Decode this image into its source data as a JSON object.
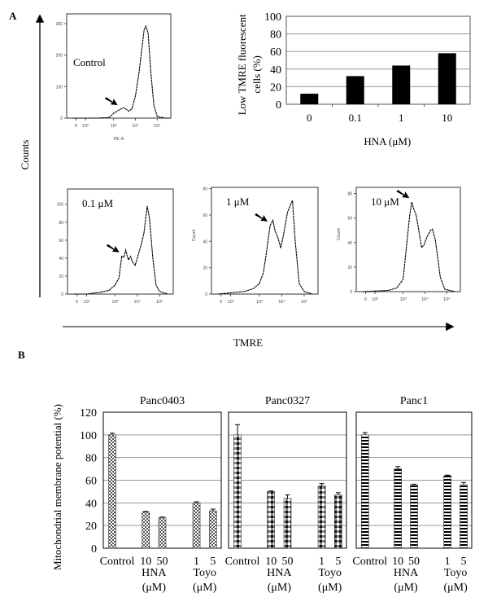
{
  "figure": {
    "panel_a_label": "A",
    "panel_b_label": "B",
    "counts_label": "Counts",
    "tmre_label": "TMRE",
    "mmp_ylabel": "Mitochondrial membrane potential (%)"
  },
  "chart_data": [
    {
      "id": "hist-control",
      "type": "line",
      "xscale": "log",
      "label": "Control",
      "xlabel": "PE-A",
      "ylabel": "",
      "xticks": [
        "0",
        "10²",
        "10³",
        "10⁴",
        "10⁵"
      ],
      "yticks": [
        0,
        100,
        200,
        300
      ],
      "ylim": [
        0,
        331
      ],
      "arrow_at": 2000,
      "points": [
        [
          10,
          0
        ],
        [
          300,
          0
        ],
        [
          700,
          2
        ],
        [
          1000,
          15
        ],
        [
          2000,
          28
        ],
        [
          3000,
          33
        ],
        [
          5000,
          22
        ],
        [
          7000,
          30
        ],
        [
          10000,
          70
        ],
        [
          15000,
          150
        ],
        [
          25000,
          280
        ],
        [
          30000,
          292
        ],
        [
          38000,
          270
        ],
        [
          50000,
          150
        ],
        [
          70000,
          40
        ],
        [
          100000,
          5
        ],
        [
          200000,
          0
        ],
        [
          300000,
          0
        ]
      ]
    },
    {
      "id": "bar-low-tmre",
      "type": "bar",
      "categories": [
        "0",
        "0.1",
        "1",
        "10"
      ],
      "values": [
        12,
        32,
        44,
        58
      ],
      "ylim": [
        0,
        100
      ],
      "yticks": [
        0,
        20,
        40,
        60,
        80,
        100
      ],
      "grid": true,
      "xlabel": "HNA (μM)",
      "ylabel_lines": [
        "Low TMRE fluorescent",
        "cells  (%)"
      ],
      "color": "#000000"
    },
    {
      "id": "hist-0.1",
      "type": "line",
      "xscale": "log",
      "label": "0.1 μM",
      "xlabel": "",
      "ylabel": "",
      "xticks": [
        "0",
        "10²",
        "10³",
        "10⁴",
        "10⁵"
      ],
      "yticks": [
        0,
        20,
        40,
        60,
        80,
        100
      ],
      "ylim": [
        0,
        117
      ],
      "arrow_at": 1800,
      "points": [
        [
          10,
          0
        ],
        [
          100,
          0
        ],
        [
          300,
          2
        ],
        [
          600,
          4
        ],
        [
          1000,
          10
        ],
        [
          1500,
          18
        ],
        [
          2000,
          42
        ],
        [
          2500,
          41
        ],
        [
          3000,
          49
        ],
        [
          4000,
          38
        ],
        [
          5000,
          42
        ],
        [
          6000,
          36
        ],
        [
          8000,
          32
        ],
        [
          10000,
          40
        ],
        [
          15000,
          55
        ],
        [
          20000,
          68
        ],
        [
          28000,
          98
        ],
        [
          35000,
          85
        ],
        [
          50000,
          40
        ],
        [
          70000,
          10
        ],
        [
          100000,
          3
        ],
        [
          200000,
          0
        ]
      ]
    },
    {
      "id": "hist-1",
      "type": "line",
      "xscale": "log",
      "label": "1 μM",
      "xlabel": "",
      "ylabel": "Count",
      "xticks": [
        "0",
        "10²",
        "10³",
        "10⁴",
        "10⁵"
      ],
      "yticks": [
        0,
        20,
        40,
        60,
        80
      ],
      "ylim": [
        0,
        81
      ],
      "arrow_at": 2500,
      "points": [
        [
          10,
          0
        ],
        [
          300,
          2
        ],
        [
          600,
          4
        ],
        [
          1000,
          8
        ],
        [
          1500,
          16
        ],
        [
          2000,
          30
        ],
        [
          3000,
          52
        ],
        [
          4000,
          56
        ],
        [
          5000,
          48
        ],
        [
          7000,
          42
        ],
        [
          9000,
          35
        ],
        [
          12000,
          45
        ],
        [
          18000,
          62
        ],
        [
          25000,
          68
        ],
        [
          30000,
          71
        ],
        [
          40000,
          40
        ],
        [
          60000,
          8
        ],
        [
          100000,
          2
        ],
        [
          200000,
          0
        ]
      ]
    },
    {
      "id": "hist-10",
      "type": "line",
      "xscale": "log",
      "label": "10 μM",
      "xlabel": "",
      "ylabel": "Count",
      "xticks": [
        "0",
        "10²",
        "10³",
        "10⁴",
        "10⁵"
      ],
      "yticks": [
        0,
        20,
        40,
        60,
        80
      ],
      "ylim": [
        0,
        85
      ],
      "arrow_at": 2300,
      "points": [
        [
          10,
          0
        ],
        [
          300,
          1
        ],
        [
          600,
          3
        ],
        [
          1000,
          10
        ],
        [
          1500,
          40
        ],
        [
          2000,
          62
        ],
        [
          2500,
          73
        ],
        [
          3000,
          68
        ],
        [
          4000,
          62
        ],
        [
          5000,
          52
        ],
        [
          7000,
          36
        ],
        [
          9000,
          38
        ],
        [
          12000,
          44
        ],
        [
          18000,
          50
        ],
        [
          22000,
          51
        ],
        [
          30000,
          42
        ],
        [
          50000,
          12
        ],
        [
          80000,
          2
        ],
        [
          200000,
          0
        ]
      ]
    },
    {
      "id": "bar-panc0403",
      "type": "bar",
      "title": "Panc0403",
      "categories": [
        "Control",
        "10",
        "50",
        "1",
        "5"
      ],
      "groups": [
        {
          "label": "HNA",
          "unit": "(μM)"
        },
        {
          "label": "Toyo",
          "unit": "(μM)"
        }
      ],
      "values": [
        100,
        32,
        27,
        40,
        33
      ],
      "errors": [
        1.5,
        0.5,
        0.5,
        1,
        1.5
      ],
      "ylim": [
        0,
        120
      ],
      "yticks": [
        0,
        20,
        40,
        60,
        80,
        100,
        120
      ],
      "grid": true,
      "pattern": "fine-checker"
    },
    {
      "id": "bar-panc0327",
      "type": "bar",
      "title": "Panc0327",
      "categories": [
        "Control",
        "10",
        "50",
        "1",
        "5"
      ],
      "groups": [
        {
          "label": "HNA",
          "unit": "(μM)"
        },
        {
          "label": "Toyo",
          "unit": "(μM)"
        }
      ],
      "values": [
        100,
        50,
        44,
        55,
        47
      ],
      "errors": [
        9,
        0.5,
        3,
        2,
        2
      ],
      "ylim": [
        0,
        120
      ],
      "grid": true,
      "pattern": "coarse-checker"
    },
    {
      "id": "bar-panc1",
      "type": "bar",
      "title": "Panc1",
      "categories": [
        "Control",
        "10",
        "50",
        "1",
        "5"
      ],
      "groups": [
        {
          "label": "HNA",
          "unit": "(μM)"
        },
        {
          "label": "Toyo",
          "unit": "(μM)"
        }
      ],
      "values": [
        100,
        70,
        56,
        64,
        56
      ],
      "errors": [
        2,
        2,
        0.5,
        0.5,
        2
      ],
      "ylim": [
        0,
        120
      ],
      "grid": true,
      "pattern": "horizontal-stripes"
    }
  ]
}
